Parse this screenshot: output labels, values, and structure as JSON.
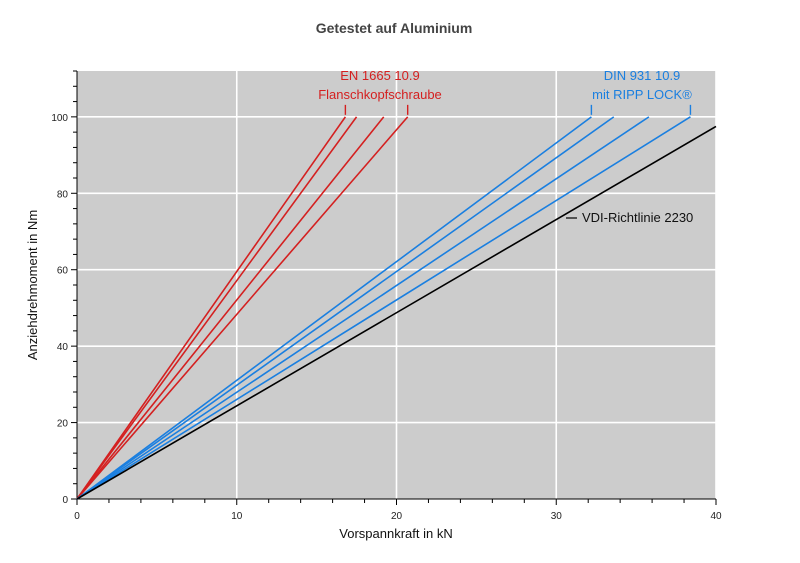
{
  "chart_data": {
    "type": "line",
    "title": "Getestet auf Aluminium",
    "xlabel": "Vorspannkraft in kN",
    "ylabel": "Anziehdrehmoment in Nm",
    "xlim": [
      0,
      40
    ],
    "ylim": [
      0,
      112
    ],
    "xticks": [
      0,
      10,
      20,
      30,
      40
    ],
    "yticks": [
      0,
      20,
      40,
      60,
      80,
      100
    ],
    "grid": true,
    "colors": {
      "red": "#d42020",
      "blue": "#1a7fe0",
      "black": "#000000",
      "background": "#cccccc"
    },
    "groups": [
      {
        "label_lines": [
          "EN 1665 10.9",
          "Flanschkopfschraube"
        ],
        "color": "#d42020",
        "series": [
          {
            "x": [
              0,
              16.8
            ],
            "y": [
              0,
              100
            ]
          },
          {
            "x": [
              0,
              17.5
            ],
            "y": [
              0,
              100
            ]
          },
          {
            "x": [
              0,
              19.2
            ],
            "y": [
              0,
              100
            ]
          },
          {
            "x": [
              0,
              20.7
            ],
            "y": [
              0,
              100
            ]
          }
        ]
      },
      {
        "label_lines": [
          "DIN 931 10.9",
          "mit RIPP LOCK®"
        ],
        "color": "#1a7fe0",
        "series": [
          {
            "x": [
              0,
              32.2
            ],
            "y": [
              0,
              100
            ]
          },
          {
            "x": [
              0,
              33.6
            ],
            "y": [
              0,
              100
            ]
          },
          {
            "x": [
              0,
              35.8
            ],
            "y": [
              0,
              100
            ]
          },
          {
            "x": [
              0,
              38.4
            ],
            "y": [
              0,
              100
            ]
          }
        ]
      },
      {
        "label_lines": [
          "VDI-Richtlinie 2230"
        ],
        "color": "#000000",
        "series": [
          {
            "x": [
              0,
              40
            ],
            "y": [
              0,
              97.5
            ]
          }
        ]
      }
    ]
  }
}
